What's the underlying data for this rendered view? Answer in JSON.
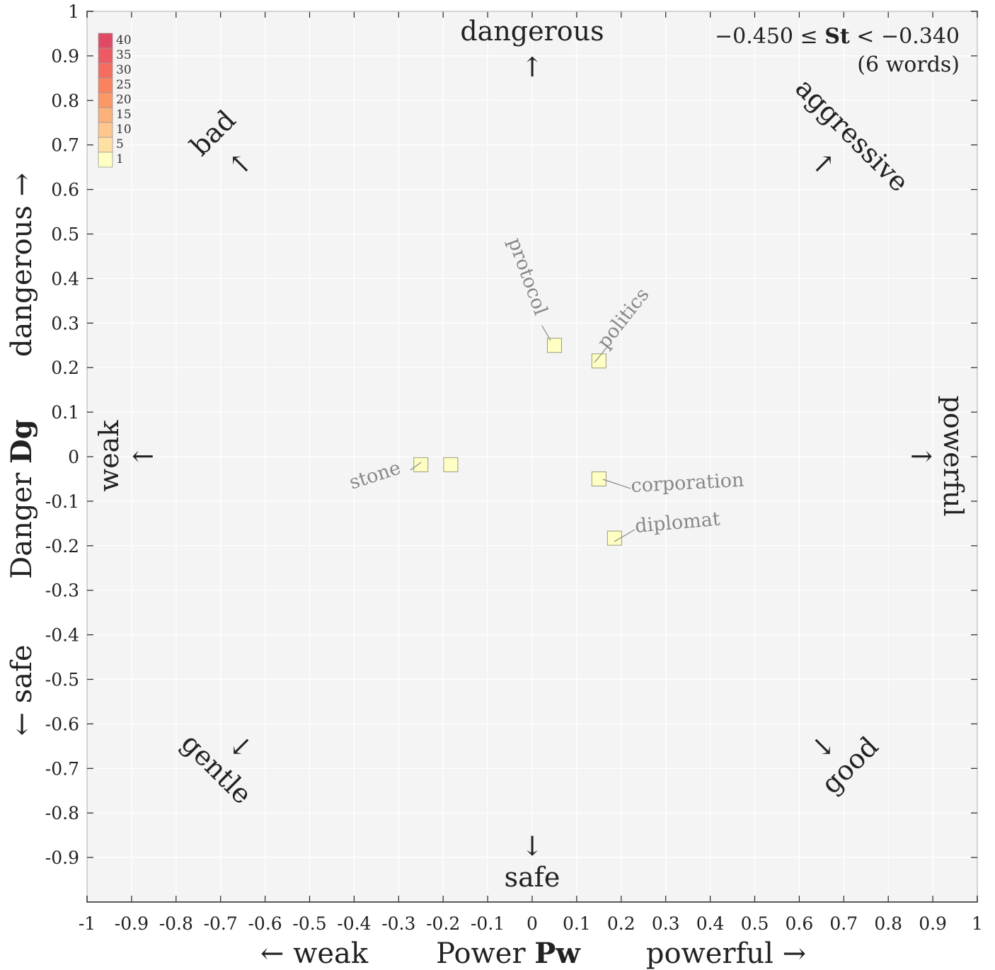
{
  "chart_data": {
    "type": "scatter",
    "xlabel": {
      "prefix": "Power ",
      "bold": "Pw"
    },
    "ylabel": {
      "prefix": "Danger ",
      "bold": "Dg"
    },
    "x_ticks": [
      "-1",
      "-0.9",
      "-0.8",
      "-0.7",
      "-0.6",
      "-0.5",
      "-0.4",
      "-0.3",
      "-0.2",
      "-0.1",
      "0",
      "0.1",
      "0.2",
      "0.3",
      "0.4",
      "0.5",
      "0.6",
      "0.7",
      "0.8",
      "0.9",
      "1"
    ],
    "y_ticks": [
      "1",
      "0.9",
      "0.8",
      "0.7",
      "0.6",
      "0.5",
      "0.4",
      "0.3",
      "0.2",
      "0.1",
      "0",
      "-0.1",
      "-0.2",
      "-0.3",
      "-0.4",
      "-0.5",
      "-0.6",
      "-0.7",
      "-0.8",
      "-0.9"
    ],
    "xlim": [
      -1,
      1
    ],
    "ylim": [
      -1,
      1
    ],
    "grid": true,
    "x_axis_extras": {
      "left": "← weak",
      "right": "powerful →"
    },
    "y_axis_extras": {
      "top": "dangerous →",
      "bottom": "← safe"
    },
    "directions": {
      "top": {
        "label": "dangerous",
        "arrow": "↑"
      },
      "bottom": {
        "label": "safe",
        "arrow": "↓"
      },
      "left": {
        "label": "weak",
        "arrow": "←"
      },
      "right": {
        "label": "powerful",
        "arrow": "→"
      },
      "top_left": {
        "label": "bad",
        "arrow": "↑"
      },
      "top_right": {
        "label": "aggressive",
        "arrow": "↑"
      },
      "bottom_left": {
        "label": "gentle",
        "arrow": "↓"
      },
      "bottom_right": {
        "label": "good",
        "arrow": "↓"
      }
    },
    "range_text": {
      "line1_pre": "−0.450 ≤ ",
      "line1_bold": "St",
      "line1_post": " < −0.340",
      "line2": "(6 words)"
    },
    "legend": {
      "placement": "top-left",
      "levels": [
        {
          "label": "40",
          "color": "#e04a64"
        },
        {
          "label": "35",
          "color": "#ec5a63"
        },
        {
          "label": "30",
          "color": "#f46d5e"
        },
        {
          "label": "25",
          "color": "#f9835e"
        },
        {
          "label": "20",
          "color": "#fb9866"
        },
        {
          "label": "15",
          "color": "#fcb07a"
        },
        {
          "label": "10",
          "color": "#fdc78f"
        },
        {
          "label": "5",
          "color": "#fee0a3"
        },
        {
          "label": "1",
          "color": "#ffffc4"
        }
      ]
    },
    "points": [
      {
        "word": "protocol",
        "x": 0.05,
        "y": 0.25,
        "count": 1
      },
      {
        "word": "politics",
        "x": 0.15,
        "y": 0.215,
        "count": 1
      },
      {
        "word": "stone",
        "x": -0.25,
        "y": -0.018,
        "count": 1
      },
      {
        "word": "",
        "x": -0.183,
        "y": -0.018,
        "count": 1
      },
      {
        "word": "corporation",
        "x": 0.15,
        "y": -0.05,
        "count": 1
      },
      {
        "word": "diplomat",
        "x": 0.185,
        "y": -0.183,
        "count": 1
      }
    ]
  }
}
